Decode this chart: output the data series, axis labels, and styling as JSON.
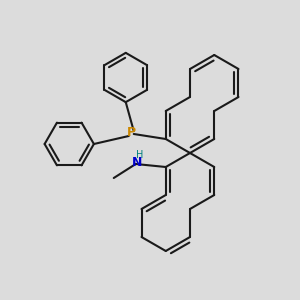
{
  "background_color": "#dcdcdc",
  "lw": 1.5,
  "bond_color": "#1a1a1a",
  "P_color": "#cc8800",
  "N_color": "#0000cc",
  "H_color": "#008080",
  "xlim": [
    0,
    300
  ],
  "ylim": [
    0,
    300
  ]
}
